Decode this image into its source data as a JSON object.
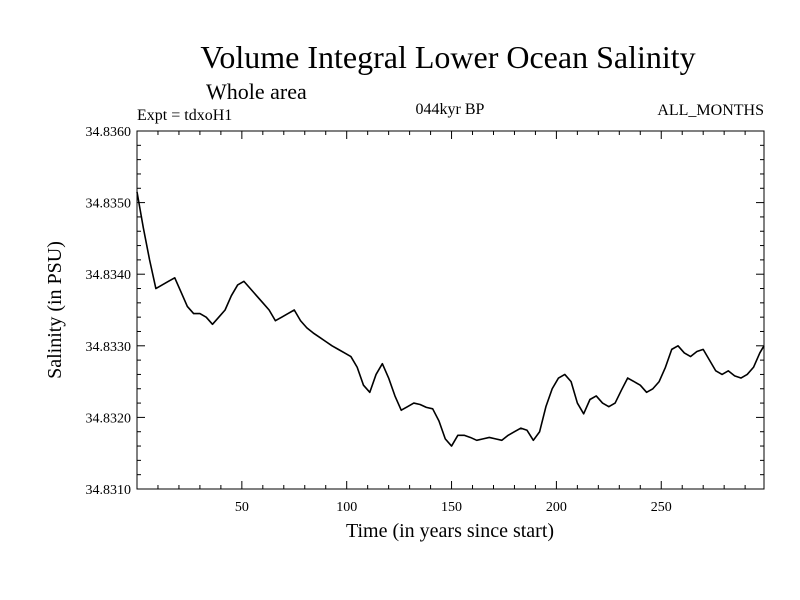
{
  "chart_data": {
    "type": "line",
    "title": "Volume Integral Lower Ocean Salinity",
    "subtitle": "Whole area",
    "expt_label": "Expt = tdxoH1",
    "period_label": "044kyr BP",
    "months_label": "ALL_MONTHS",
    "xlabel": "Time (in years since start)",
    "ylabel": "Salinity (in PSU)",
    "xlim": [
      0,
      299
    ],
    "ylim": [
      34.831,
      34.836
    ],
    "x_ticks": [
      50,
      100,
      150,
      200,
      250
    ],
    "y_ticks": [
      "34.8310",
      "34.8320",
      "34.8330",
      "34.8340",
      "34.8350",
      "34.8360"
    ],
    "grid": false,
    "series": [
      {
        "name": "Salinity",
        "color": "#000000",
        "x": [
          0,
          3,
          6,
          9,
          12,
          15,
          18,
          21,
          24,
          27,
          30,
          33,
          36,
          39,
          42,
          45,
          48,
          51,
          54,
          57,
          60,
          63,
          66,
          69,
          72,
          75,
          78,
          81,
          84,
          87,
          90,
          93,
          96,
          99,
          102,
          105,
          108,
          111,
          114,
          117,
          120,
          123,
          126,
          129,
          132,
          135,
          138,
          141,
          144,
          147,
          150,
          153,
          156,
          159,
          162,
          165,
          168,
          171,
          174,
          177,
          180,
          183,
          186,
          189,
          192,
          195,
          198,
          201,
          204,
          207,
          210,
          213,
          216,
          219,
          222,
          225,
          228,
          231,
          234,
          237,
          240,
          243,
          246,
          249,
          252,
          255,
          258,
          261,
          264,
          267,
          270,
          273,
          276,
          279,
          282,
          285,
          288,
          291,
          294,
          297,
          299
        ],
        "y": [
          34.83515,
          34.83465,
          34.8342,
          34.8338,
          34.83385,
          34.8339,
          34.83395,
          34.83375,
          34.83355,
          34.83345,
          34.83345,
          34.8334,
          34.8333,
          34.8334,
          34.8335,
          34.8337,
          34.83385,
          34.8339,
          34.8338,
          34.8337,
          34.8336,
          34.8335,
          34.83335,
          34.8334,
          34.83345,
          34.8335,
          34.83335,
          34.83325,
          34.83318,
          34.83312,
          34.83306,
          34.833,
          34.83295,
          34.8329,
          34.83285,
          34.8327,
          34.83245,
          34.83235,
          34.8326,
          34.83275,
          34.83255,
          34.8323,
          34.8321,
          34.83215,
          34.8322,
          34.83218,
          34.83214,
          34.83212,
          34.83195,
          34.8317,
          34.8316,
          34.83175,
          34.83175,
          34.83172,
          34.83168,
          34.8317,
          34.83172,
          34.8317,
          34.83168,
          34.83175,
          34.8318,
          34.83185,
          34.83182,
          34.83168,
          34.8318,
          34.83215,
          34.8324,
          34.83255,
          34.8326,
          34.8325,
          34.8322,
          34.83205,
          34.83225,
          34.8323,
          34.8322,
          34.83215,
          34.8322,
          34.83238,
          34.83255,
          34.8325,
          34.83245,
          34.83235,
          34.8324,
          34.8325,
          34.8327,
          34.83295,
          34.833,
          34.8329,
          34.83285,
          34.83292,
          34.83295,
          34.8328,
          34.83265,
          34.8326,
          34.83265,
          34.83258,
          34.83255,
          34.8326,
          34.8327,
          34.8329,
          34.833
        ]
      }
    ]
  }
}
